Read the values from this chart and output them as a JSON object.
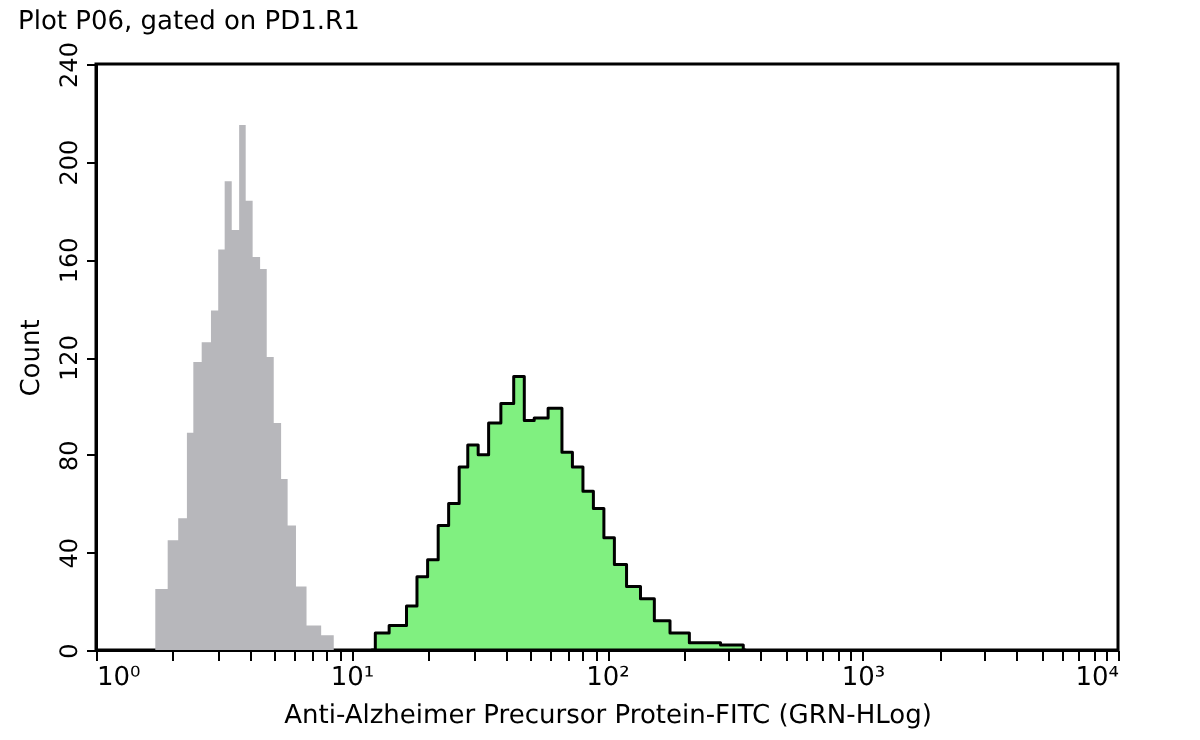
{
  "chart_data": {
    "type": "area",
    "title": "Plot P06, gated on PD1.R1",
    "xlabel": "Anti-Alzheimer Precursor Protein-FITC (GRN-HLog)",
    "ylabel": "Count",
    "log": "x",
    "grid": false,
    "xlim": [
      1,
      10000
    ],
    "ylim": [
      0,
      240
    ],
    "xticks": [
      {
        "value": 1,
        "label": "10⁰"
      },
      {
        "value": 2,
        "label": null
      },
      {
        "value": 3,
        "label": null
      },
      {
        "value": 4,
        "label": null
      },
      {
        "value": 5,
        "label": null
      },
      {
        "value": 6,
        "label": null
      },
      {
        "value": 7,
        "label": null
      },
      {
        "value": 8,
        "label": null
      },
      {
        "value": 9,
        "label": null
      },
      {
        "value": 10,
        "label": "10¹"
      },
      {
        "value": 20,
        "label": null
      },
      {
        "value": 30,
        "label": null
      },
      {
        "value": 40,
        "label": null
      },
      {
        "value": 50,
        "label": null
      },
      {
        "value": 60,
        "label": null
      },
      {
        "value": 70,
        "label": null
      },
      {
        "value": 80,
        "label": null
      },
      {
        "value": 90,
        "label": null
      },
      {
        "value": 100,
        "label": "10²"
      },
      {
        "value": 200,
        "label": null
      },
      {
        "value": 300,
        "label": null
      },
      {
        "value": 400,
        "label": null
      },
      {
        "value": 500,
        "label": null
      },
      {
        "value": 600,
        "label": null
      },
      {
        "value": 700,
        "label": null
      },
      {
        "value": 800,
        "label": null
      },
      {
        "value": 900,
        "label": null
      },
      {
        "value": 1000,
        "label": "10³"
      },
      {
        "value": 2000,
        "label": null
      },
      {
        "value": 3000,
        "label": null
      },
      {
        "value": 4000,
        "label": null
      },
      {
        "value": 5000,
        "label": null
      },
      {
        "value": 6000,
        "label": null
      },
      {
        "value": 7000,
        "label": null
      },
      {
        "value": 8000,
        "label": null
      },
      {
        "value": 9000,
        "label": null
      },
      {
        "value": 10000,
        "label": "10⁴"
      }
    ],
    "yticks": [
      0,
      40,
      80,
      120,
      160,
      200,
      240
    ],
    "series": [
      {
        "color": "#b7b7bb",
        "x": [
          1.6,
          1.82,
          2.0,
          2.2,
          2.34,
          2.47,
          2.72,
          2.92,
          3.1,
          3.28,
          3.52,
          3.75,
          3.96,
          4.25,
          4.53,
          4.79,
          5.14,
          5.47,
          5.78,
          6.36,
          6.99,
          8.28,
          8.77
        ],
        "values": [
          0,
          25,
          45,
          54,
          89,
          118,
          126,
          139,
          164,
          192,
          172,
          215,
          184,
          161,
          156,
          120,
          93,
          70,
          51,
          26,
          10,
          6,
          0
        ]
      },
      {
        "color": "#80f080",
        "x": [
          12.0,
          12.8,
          15.4,
          17.5,
          18.6,
          21.2,
          22.5,
          25.6,
          27.2,
          29.9,
          32.8,
          36.1,
          40.9,
          45.5,
          49.5,
          54.4,
          63.6,
          69.8,
          76.8,
          84.4,
          92.7,
          102,
          112,
          127,
          144,
          163,
          191,
          231,
          335,
          348
        ],
        "values": [
          0,
          7,
          10,
          18,
          30,
          37,
          51,
          60,
          75,
          84,
          80,
          93,
          101,
          112,
          94,
          95,
          99,
          81,
          75,
          65,
          58,
          46,
          35,
          26,
          21,
          12,
          7,
          3,
          2,
          0
        ]
      }
    ]
  }
}
